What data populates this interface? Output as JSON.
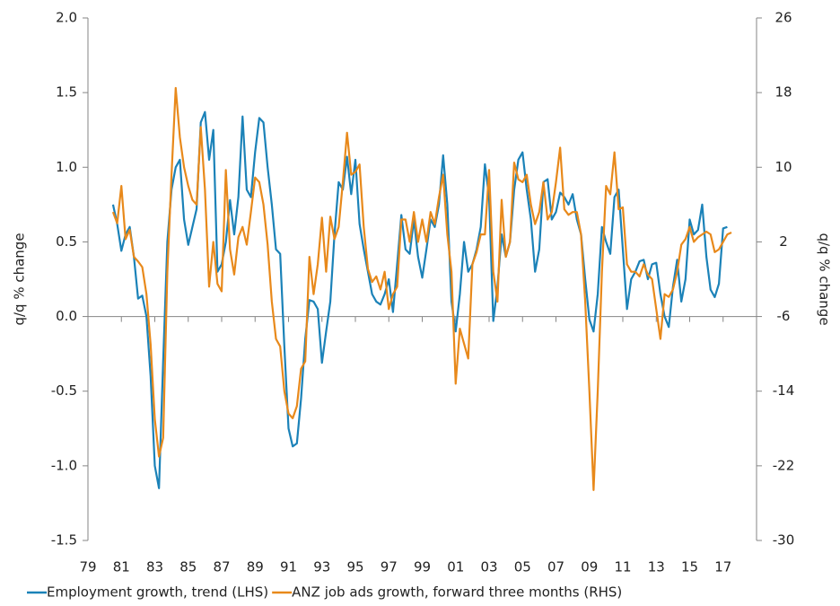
{
  "chart_data": {
    "type": "line",
    "ylabel": "q/q % change",
    "y2label": "q/q % change",
    "xlim": [
      1979,
      2019
    ],
    "xticks": [
      {
        "value": 1979,
        "label": "79"
      },
      {
        "value": 1981,
        "label": "81"
      },
      {
        "value": 1983,
        "label": "83"
      },
      {
        "value": 1985,
        "label": "85"
      },
      {
        "value": 1987,
        "label": "87"
      },
      {
        "value": 1989,
        "label": "89"
      },
      {
        "value": 1991,
        "label": "91"
      },
      {
        "value": 1993,
        "label": "93"
      },
      {
        "value": 1995,
        "label": "95"
      },
      {
        "value": 1997,
        "label": "97"
      },
      {
        "value": 1999,
        "label": "99"
      },
      {
        "value": 2001,
        "label": "01"
      },
      {
        "value": 2003,
        "label": "03"
      },
      {
        "value": 2005,
        "label": "05"
      },
      {
        "value": 2007,
        "label": "07"
      },
      {
        "value": 2009,
        "label": "09"
      },
      {
        "value": 2011,
        "label": "11"
      },
      {
        "value": 2013,
        "label": "13"
      },
      {
        "value": 2015,
        "label": "15"
      },
      {
        "value": 2017,
        "label": "17"
      }
    ],
    "ylim": [
      -1.5,
      2.0
    ],
    "yticks": [
      {
        "value": -1.5,
        "label": "-1.5"
      },
      {
        "value": -1,
        "label": "-1.0"
      },
      {
        "value": -0.5,
        "label": "-0.5"
      },
      {
        "value": 0,
        "label": "0.0"
      },
      {
        "value": 0.5,
        "label": "0.5"
      },
      {
        "value": 1,
        "label": "1.0"
      },
      {
        "value": 1.5,
        "label": "1.5"
      },
      {
        "value": 2,
        "label": "2.0"
      }
    ],
    "y2lim": [
      -30,
      26
    ],
    "y2ticks": [
      -30,
      -22,
      -14,
      -6,
      2,
      10,
      18,
      26
    ],
    "legend": "bottom",
    "x": [
      1980.5,
      1980.75,
      1981,
      1981.25,
      1981.5,
      1981.75,
      1982,
      1982.25,
      1982.5,
      1982.75,
      1983,
      1983.25,
      1983.5,
      1983.75,
      1984,
      1984.25,
      1984.5,
      1984.75,
      1985,
      1985.25,
      1985.5,
      1985.75,
      1986,
      1986.25,
      1986.5,
      1986.75,
      1987,
      1987.25,
      1987.5,
      1987.75,
      1988,
      1988.25,
      1988.5,
      1988.75,
      1989,
      1989.25,
      1989.5,
      1989.75,
      1990,
      1990.25,
      1990.5,
      1990.75,
      1991,
      1991.25,
      1991.5,
      1991.75,
      1992,
      1992.25,
      1992.5,
      1992.75,
      1993,
      1993.25,
      1993.5,
      1993.75,
      1994,
      1994.25,
      1994.5,
      1994.75,
      1995,
      1995.25,
      1995.5,
      1995.75,
      1996,
      1996.25,
      1996.5,
      1996.75,
      1997,
      1997.25,
      1997.5,
      1997.75,
      1998,
      1998.25,
      1998.5,
      1998.75,
      1999,
      1999.25,
      1999.5,
      1999.75,
      2000,
      2000.25,
      2000.5,
      2000.75,
      2001,
      2001.25,
      2001.5,
      2001.75,
      2002,
      2002.25,
      2002.5,
      2002.75,
      2003,
      2003.25,
      2003.5,
      2003.75,
      2004,
      2004.25,
      2004.5,
      2004.75,
      2005,
      2005.25,
      2005.5,
      2005.75,
      2006,
      2006.25,
      2006.5,
      2006.75,
      2007,
      2007.25,
      2007.5,
      2007.75,
      2008,
      2008.25,
      2008.5,
      2008.75,
      2009,
      2009.25,
      2009.5,
      2009.75,
      2010,
      2010.25,
      2010.5,
      2010.75,
      2011,
      2011.25,
      2011.5,
      2011.75,
      2012,
      2012.25,
      2012.5,
      2012.75,
      2013,
      2013.25,
      2013.5,
      2013.75,
      2014,
      2014.25,
      2014.5,
      2014.75,
      2015,
      2015.25,
      2015.5,
      2015.75,
      2016,
      2016.25,
      2016.5,
      2016.75,
      2017,
      2017.25,
      2017.5
    ],
    "series": [
      {
        "name": "Employment growth, trend (LHS)",
        "color": "#1b82b8",
        "axis": "y",
        "values": [
          0.75,
          0.62,
          0.44,
          0.55,
          0.6,
          0.4,
          0.12,
          0.14,
          0.0,
          -0.4,
          -1.0,
          -1.15,
          -0.3,
          0.5,
          0.85,
          1.0,
          1.05,
          0.65,
          0.48,
          0.6,
          0.72,
          1.3,
          1.37,
          1.05,
          1.25,
          0.3,
          0.35,
          0.5,
          0.78,
          0.55,
          0.8,
          1.34,
          0.85,
          0.8,
          1.1,
          1.33,
          1.3,
          1.0,
          0.75,
          0.45,
          0.42,
          -0.2,
          -0.75,
          -0.87,
          -0.85,
          -0.55,
          -0.15,
          0.11,
          0.1,
          0.05,
          -0.31,
          -0.1,
          0.1,
          0.55,
          0.9,
          0.85,
          1.07,
          0.82,
          1.05,
          0.62,
          0.45,
          0.3,
          0.15,
          0.1,
          0.08,
          0.15,
          0.25,
          0.03,
          0.35,
          0.68,
          0.45,
          0.42,
          0.65,
          0.4,
          0.26,
          0.45,
          0.65,
          0.6,
          0.75,
          1.08,
          0.75,
          0.1,
          -0.1,
          0.15,
          0.5,
          0.3,
          0.35,
          0.45,
          0.6,
          1.02,
          0.8,
          -0.03,
          0.2,
          0.55,
          0.4,
          0.5,
          0.85,
          1.05,
          1.1,
          0.85,
          0.65,
          0.3,
          0.45,
          0.9,
          0.92,
          0.65,
          0.7,
          0.83,
          0.8,
          0.75,
          0.82,
          0.65,
          0.55,
          0.25,
          -0.02,
          -0.1,
          0.15,
          0.6,
          0.5,
          0.42,
          0.8,
          0.85,
          0.45,
          0.05,
          0.25,
          0.3,
          0.37,
          0.38,
          0.25,
          0.35,
          0.36,
          0.15,
          0.0,
          -0.07,
          0.2,
          0.38,
          0.1,
          0.25,
          0.65,
          0.55,
          0.58,
          0.75,
          0.4,
          0.18,
          0.13,
          0.22,
          0.59,
          0.6,
          null
        ]
      },
      {
        "name": "ANZ job ads growth, forward three months (RHS)",
        "color": "#e8891b",
        "axis": "y2",
        "values": [
          5.2,
          4,
          8,
          2.3,
          3.3,
          0.4,
          -0.1,
          -0.7,
          -3.6,
          -9,
          -17,
          -21,
          -19,
          -1.2,
          9.2,
          18.5,
          13.2,
          10,
          8,
          6.5,
          6,
          14.3,
          7.6,
          -2.8,
          2,
          -2.5,
          -3.3,
          9.7,
          1.2,
          -1.5,
          2.5,
          3.6,
          1.7,
          5.2,
          8.9,
          8.4,
          6,
          1.7,
          -4.4,
          -8.4,
          -9.2,
          -14,
          -16.4,
          -16.9,
          -15.6,
          -11.6,
          -10.8,
          0.4,
          -3.6,
          -0.4,
          4.6,
          -1.2,
          4.7,
          2.3,
          3.6,
          8.4,
          13.7,
          9.2,
          9.5,
          10.3,
          3.6,
          -0.9,
          -2.3,
          -1.7,
          -3.1,
          -1.2,
          -5.2,
          -3.6,
          -2.8,
          4.4,
          4.4,
          2,
          5.2,
          2,
          4.4,
          2,
          5.2,
          3.9,
          6.8,
          9.2,
          2.8,
          -1.2,
          -13.2,
          -7.3,
          -8.9,
          -10.5,
          -0.4,
          0.9,
          2.8,
          2.8,
          9.7,
          -1.2,
          -4.4,
          6.5,
          0.4,
          2,
          10.5,
          8.7,
          8.4,
          9.2,
          6,
          3.9,
          5.2,
          8.4,
          4.4,
          5.2,
          8.4,
          12.1,
          5.5,
          4.9,
          5.2,
          5.2,
          2.8,
          -4.4,
          -14,
          -24.6,
          -14,
          -1.2,
          8,
          7.1,
          11.6,
          5.5,
          5.7,
          -0.4,
          -1.2,
          -1.2,
          -1.7,
          -0.4,
          -1.5,
          -2,
          -5.2,
          -8.4,
          -3.6,
          -3.9,
          -3.1,
          -1.2,
          1.7,
          2.3,
          3.6,
          2,
          2.5,
          2.8,
          3.1,
          2.8,
          0.9,
          1.2,
          2,
          2.8,
          3.0
        ]
      }
    ]
  }
}
